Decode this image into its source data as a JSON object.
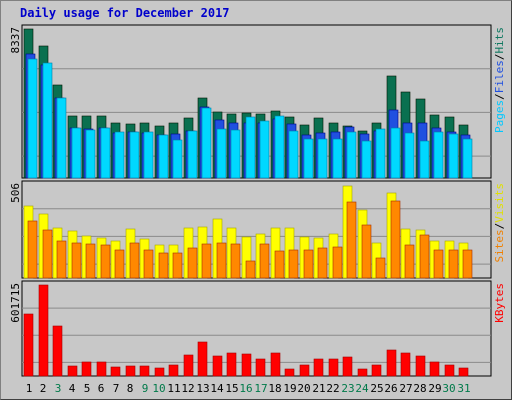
{
  "chart_data": [
    {
      "type": "bar",
      "title": "Daily usage for December 2017",
      "x": [
        "1",
        "2",
        "3",
        "4",
        "5",
        "6",
        "7",
        "8",
        "9",
        "10",
        "11",
        "12",
        "13",
        "14",
        "15",
        "16",
        "17",
        "18",
        "19",
        "20",
        "21",
        "22",
        "23",
        "24",
        "25",
        "26",
        "27",
        "28",
        "29",
        "30",
        "31"
      ],
      "weekend_days": [
        "3",
        "9",
        "10",
        "16",
        "17",
        "23",
        "24",
        "30",
        "31"
      ],
      "ymax_label": "8337",
      "ymax": 8337,
      "right_label": {
        "parts": [
          "Pages",
          "Files",
          "Hits"
        ],
        "separator": "/",
        "colors": [
          "#00c8ff",
          "#2050e0",
          "#107860"
        ]
      },
      "series": [
        {
          "name": "Hits",
          "color": "#0a7050",
          "values": [
            8337,
            7400,
            5200,
            3450,
            3450,
            3450,
            3050,
            3000,
            3050,
            2900,
            3050,
            3350,
            4450,
            3700,
            3600,
            3650,
            3600,
            3750,
            3400,
            2950,
            3350,
            3050,
            2900,
            2650,
            3050,
            5700,
            4800,
            4400,
            3550,
            3400,
            2950
          ]
        },
        {
          "name": "Files",
          "color": "#2050e0",
          "values": [
            6950,
            6350,
            4500,
            2800,
            2750,
            2800,
            2500,
            2550,
            2500,
            2400,
            2450,
            2650,
            3950,
            3250,
            3050,
            3100,
            3050,
            3300,
            3000,
            2400,
            2500,
            2550,
            2850,
            2450,
            2650,
            3800,
            3050,
            3050,
            2800,
            2550,
            2400
          ]
        },
        {
          "name": "Pages",
          "color": "#00d8ff",
          "values": [
            6650,
            6450,
            4500,
            2800,
            2700,
            2800,
            2550,
            2550,
            2550,
            2400,
            2100,
            2650,
            3900,
            2750,
            2700,
            3400,
            3200,
            3450,
            2650,
            2200,
            2200,
            2200,
            2600,
            2050,
            2750,
            2800,
            2500,
            2050,
            2600,
            2450,
            2200
          ]
        }
      ]
    },
    {
      "type": "bar",
      "ymax_label": "506",
      "ymax": 506,
      "right_label": {
        "parts": [
          "Sites",
          "Visits"
        ],
        "separator": "/",
        "colors": [
          "#f08000",
          "#e0e000"
        ]
      },
      "series": [
        {
          "name": "Visits",
          "color": "#ffff00",
          "values": [
            390,
            350,
            270,
            255,
            230,
            220,
            200,
            265,
            210,
            180,
            180,
            270,
            275,
            320,
            270,
            225,
            240,
            270,
            270,
            225,
            220,
            240,
            500,
            370,
            190,
            465,
            265,
            260,
            200,
            200,
            190
          ]
        },
        {
          "name": "Sites",
          "color": "#ff8800",
          "values": [
            310,
            260,
            200,
            190,
            185,
            180,
            155,
            190,
            155,
            135,
            135,
            165,
            185,
            190,
            185,
            95,
            185,
            145,
            150,
            150,
            165,
            170,
            415,
            290,
            110,
            420,
            180,
            235,
            150,
            155,
            150
          ]
        }
      ]
    },
    {
      "type": "bar",
      "ymax_label": "601715",
      "ymax": 601715,
      "right_label": {
        "parts": [
          "KBytes"
        ],
        "separator": "",
        "colors": [
          "#ff0000"
        ]
      },
      "series": [
        {
          "name": "KBytes",
          "color": "#ff0000",
          "values": [
            410000,
            601715,
            330000,
            65000,
            90000,
            95000,
            60000,
            65000,
            65000,
            55000,
            70000,
            140000,
            225000,
            130000,
            150000,
            145000,
            110000,
            150000,
            45000,
            75000,
            110000,
            110000,
            125000,
            45000,
            75000,
            170000,
            150000,
            130000,
            95000,
            70000,
            55000
          ]
        }
      ]
    }
  ]
}
